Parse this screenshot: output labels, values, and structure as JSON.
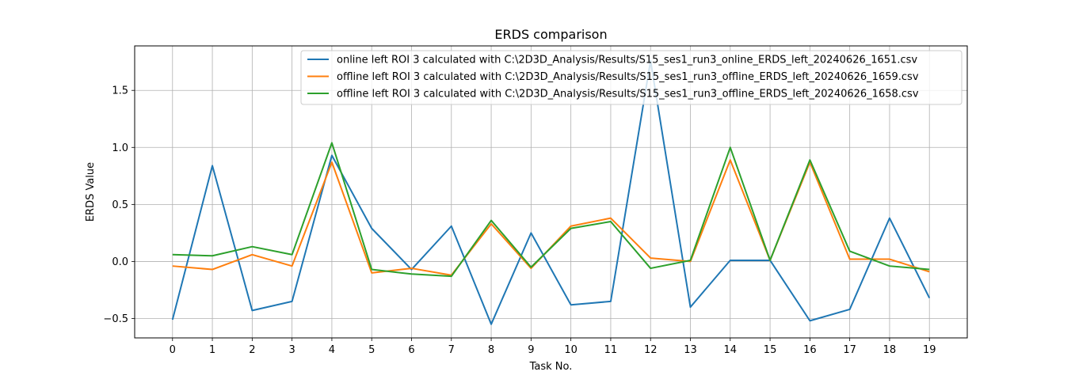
{
  "chart_data": {
    "type": "line",
    "title": "ERDS comparison",
    "xlabel": "Task No.",
    "ylabel": "ERDS Value",
    "x": [
      0,
      1,
      2,
      3,
      4,
      5,
      6,
      7,
      8,
      9,
      10,
      11,
      12,
      13,
      14,
      15,
      16,
      17,
      18,
      19
    ],
    "xlim": [
      -0.95,
      19.95
    ],
    "ylim": [
      -0.67,
      1.89
    ],
    "yticks": [
      -0.5,
      0.0,
      0.5,
      1.0,
      1.5
    ],
    "ytick_labels": [
      "−0.5",
      "0.0",
      "0.5",
      "1.0",
      "1.5"
    ],
    "xtick_labels": [
      "0",
      "1",
      "2",
      "3",
      "4",
      "5",
      "6",
      "7",
      "8",
      "9",
      "10",
      "11",
      "12",
      "13",
      "14",
      "15",
      "16",
      "17",
      "18",
      "19"
    ],
    "grid": true,
    "legend_position": "top-right",
    "series": [
      {
        "name": "online left ROI 3 calculated with C:\\2D3D_Analysis/Results/S15_ses1_run3_online_ERDS_left_20240626_1651.csv",
        "color": "#1f77b4",
        "values": [
          -0.51,
          0.84,
          -0.43,
          -0.35,
          0.93,
          0.29,
          -0.07,
          0.31,
          -0.55,
          0.25,
          -0.38,
          -0.35,
          1.76,
          -0.4,
          0.01,
          0.01,
          -0.52,
          -0.42,
          0.38,
          -0.32
        ]
      },
      {
        "name": "offline left ROI 3 calculated with C:\\2D3D_Analysis/Results/S15_ses1_run3_offline_ERDS_left_20240626_1659.csv",
        "color": "#ff7f0e",
        "values": [
          -0.04,
          -0.07,
          0.06,
          -0.04,
          0.87,
          -0.1,
          -0.06,
          -0.12,
          0.33,
          -0.06,
          0.31,
          0.38,
          0.03,
          0.0,
          0.89,
          0.01,
          0.87,
          0.02,
          0.02,
          -0.09
        ]
      },
      {
        "name": "offline left ROI 3 calculated with C:\\2D3D_Analysis/Results/S15_ses1_run3_offline_ERDS_left_20240626_1658.csv",
        "color": "#2ca02c",
        "values": [
          0.06,
          0.05,
          0.13,
          0.06,
          1.04,
          -0.07,
          -0.11,
          -0.13,
          0.36,
          -0.05,
          0.29,
          0.35,
          -0.06,
          0.01,
          1.0,
          0.01,
          0.89,
          0.09,
          -0.04,
          -0.07
        ]
      }
    ]
  }
}
